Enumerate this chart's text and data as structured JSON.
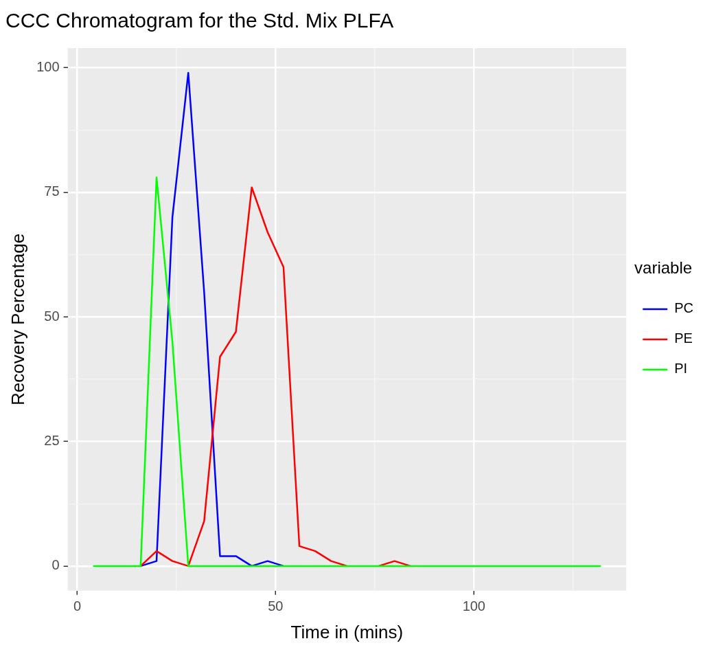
{
  "chart_data": {
    "type": "line",
    "title": "CCC Chromatogram for the Std. Mix PLFA",
    "xlabel": "Time in (mins)",
    "ylabel": "Recovery Percentage",
    "legend_title": "variable",
    "legend": "right",
    "grid": true,
    "marker": "none",
    "line_style": "solid",
    "x": [
      4,
      8,
      12,
      16,
      20,
      24,
      28,
      32,
      36,
      40,
      44,
      48,
      52,
      56,
      60,
      64,
      68,
      72,
      76,
      80,
      84,
      88,
      92,
      96,
      100,
      104,
      108,
      112,
      116,
      120,
      124,
      128,
      132
    ],
    "xlim": [
      -2.4,
      138.4
    ],
    "xticks": [
      0,
      50,
      100
    ],
    "ylim": [
      -4.95,
      103.95
    ],
    "yticks": [
      0,
      25,
      50,
      75,
      100
    ],
    "series": [
      {
        "name": "PC",
        "color": "#0000ff",
        "values": [
          null,
          null,
          null,
          0,
          1,
          70,
          99,
          55,
          2,
          2,
          0,
          1,
          0,
          null,
          null,
          null,
          null,
          null,
          null,
          null,
          null,
          null,
          null,
          null,
          null,
          null,
          null,
          null,
          null,
          null,
          null,
          null,
          null
        ]
      },
      {
        "name": "PE",
        "color": "#ff0000",
        "values": [
          null,
          null,
          null,
          0,
          3,
          1,
          0,
          9,
          42,
          47,
          76,
          67,
          60,
          4,
          3,
          1,
          0,
          null,
          0,
          1,
          0,
          null,
          null,
          null,
          null,
          null,
          null,
          null,
          null,
          null,
          null,
          null,
          null
        ]
      },
      {
        "name": "PI",
        "color": "#00ff00",
        "values": [
          0,
          0,
          0,
          0,
          78,
          45,
          0,
          0,
          0,
          0,
          0,
          0,
          0,
          0,
          0,
          0,
          0,
          0,
          0,
          0,
          0,
          0,
          0,
          0,
          0,
          0,
          0,
          0,
          0,
          0,
          0,
          0,
          0
        ]
      }
    ]
  }
}
